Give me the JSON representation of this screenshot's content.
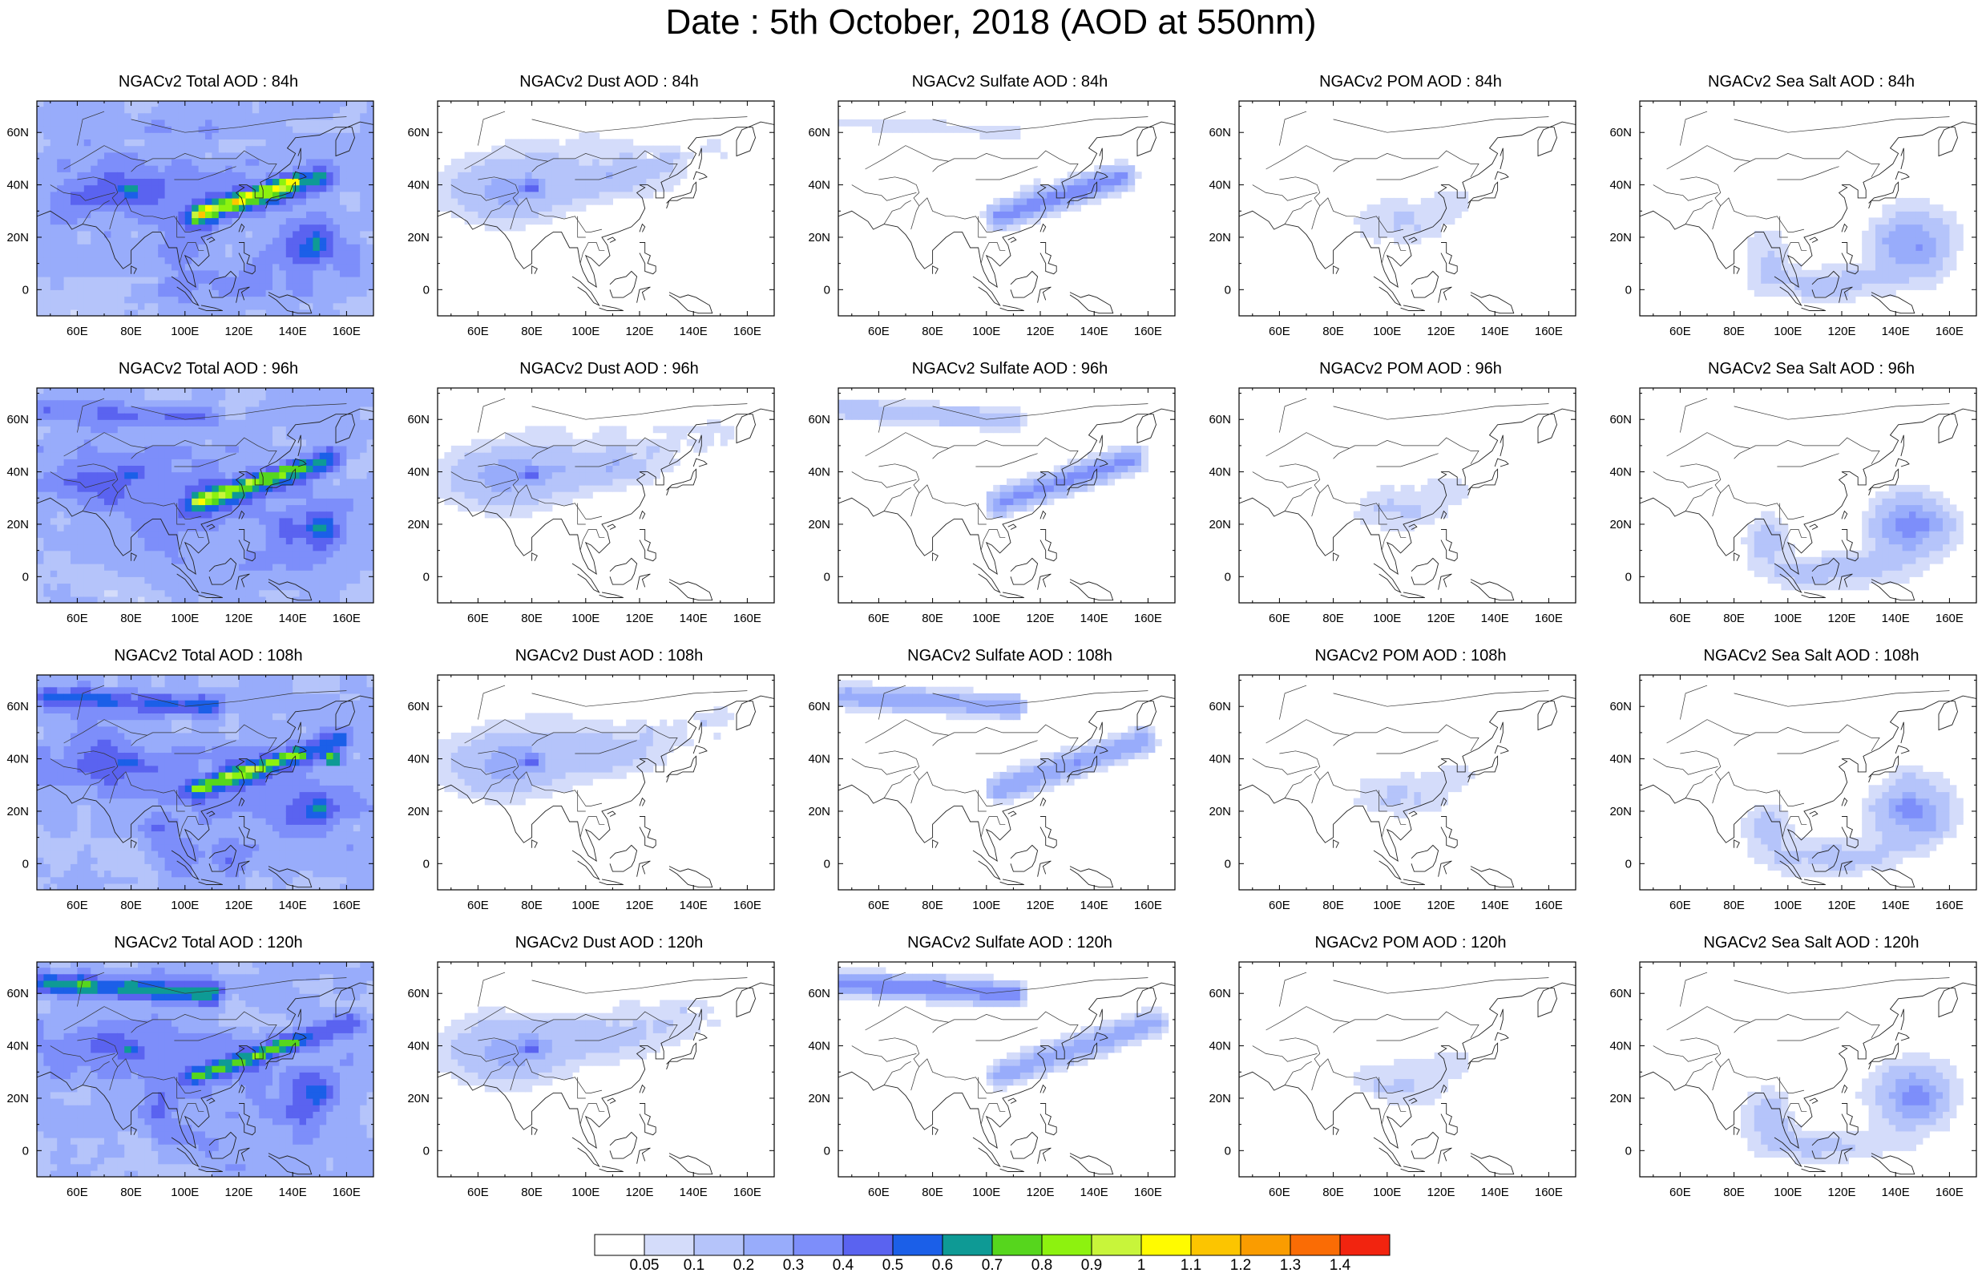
{
  "title": "Date : 5th October, 2018 (AOD at 550nm)",
  "map": {
    "lon_ticks": [
      "60E",
      "80E",
      "100E",
      "120E",
      "140E",
      "160E"
    ],
    "lat_ticks": [
      "60N",
      "40N",
      "20N",
      "0"
    ]
  },
  "colorbar": {
    "labels": [
      "0.05",
      "0.1",
      "0.2",
      "0.3",
      "0.4",
      "0.5",
      "0.6",
      "0.7",
      "0.8",
      "0.9",
      "1",
      "1.1",
      "1.2",
      "1.3",
      "1.4"
    ],
    "colors": [
      "#ffffff",
      "#d4dcfa",
      "#b5c4fa",
      "#98acfb",
      "#7d8efa",
      "#5a63f0",
      "#1b5fe8",
      "#0e9a95",
      "#56d61d",
      "#8df20f",
      "#c8f53a",
      "#fffb00",
      "#fcc500",
      "#fa9c00",
      "#fa6c05",
      "#f2240f"
    ]
  },
  "panels": [
    {
      "title": "NGACv2 Total AOD : 84h"
    },
    {
      "title": "NGACv2 Dust AOD : 84h"
    },
    {
      "title": "NGACv2 Sulfate AOD : 84h"
    },
    {
      "title": "NGACv2 POM AOD : 84h"
    },
    {
      "title": "NGACv2 Sea Salt AOD : 84h"
    },
    {
      "title": "NGACv2 Total AOD : 96h"
    },
    {
      "title": "NGACv2 Dust AOD : 96h"
    },
    {
      "title": "NGACv2 Sulfate AOD : 96h"
    },
    {
      "title": "NGACv2 POM AOD : 96h"
    },
    {
      "title": "NGACv2 Sea Salt AOD : 96h"
    },
    {
      "title": "NGACv2 Total AOD : 108h"
    },
    {
      "title": "NGACv2 Dust AOD : 108h"
    },
    {
      "title": "NGACv2 Sulfate AOD : 108h"
    },
    {
      "title": "NGACv2 POM AOD : 108h"
    },
    {
      "title": "NGACv2 Sea Salt AOD : 108h"
    },
    {
      "title": "NGACv2 Total AOD : 120h"
    },
    {
      "title": "NGACv2 Dust AOD : 120h"
    },
    {
      "title": "NGACv2 Sulfate AOD : 120h"
    },
    {
      "title": "NGACv2 POM AOD : 120h"
    },
    {
      "title": "NGACv2 Sea Salt  AOD : 120h"
    }
  ]
}
